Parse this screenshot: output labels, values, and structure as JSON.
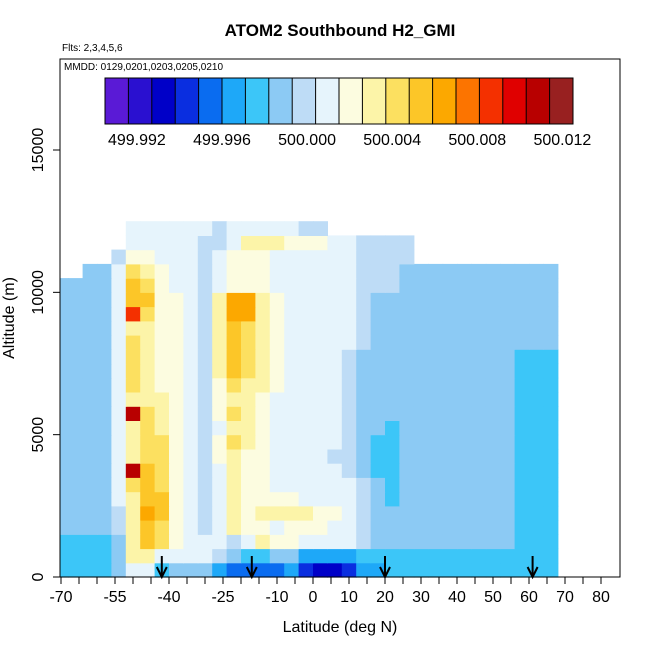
{
  "chart_data": {
    "type": "heatmap",
    "title": "ATOM2 Southbound H2_GMI",
    "flights_label": "Flts: 2,3,4,5,6",
    "dates_label": "MMDD: 0129,0201,0203,0205,0210",
    "xlabel": "Latitude (deg N)",
    "ylabel": "Altitude (m)",
    "xlim": [
      -70,
      80
    ],
    "ylim": [
      0,
      17500
    ],
    "x_ticks": [
      -70,
      -55,
      -40,
      -25,
      -10,
      0,
      10,
      20,
      30,
      40,
      50,
      60,
      70,
      80
    ],
    "x_tick_labels": [
      "-70",
      "-55",
      "-40",
      "-25",
      "-10",
      "0",
      "10",
      "20",
      "30",
      "40",
      "50",
      "60",
      "70",
      "80"
    ],
    "x_minor_ticks": [
      -65,
      -60,
      -50,
      -45,
      -35,
      -30,
      -20,
      -15,
      -5,
      5,
      15,
      25,
      35,
      45,
      55,
      65,
      75
    ],
    "y_ticks": [
      0,
      5000,
      10000,
      15000
    ],
    "y_tick_labels": [
      "0",
      "5000",
      "10000",
      "15000"
    ],
    "colorbar": {
      "ticks": [
        499.992,
        499.996,
        500.0,
        500.004,
        500.008,
        500.012
      ],
      "tick_labels": [
        "499.992",
        "499.996",
        "500.000",
        "500.004",
        "500.008",
        "500.012"
      ],
      "min": 499.9905,
      "max": 500.0125,
      "colors": [
        "#5a1ad6",
        "#2a10d0",
        "#0000c8",
        "#0a2ee0",
        "#0a6cf0",
        "#1ea8f8",
        "#3cc6f8",
        "#8ccaf4",
        "#bedcf6",
        "#e6f4fc",
        "#fcfce0",
        "#fcf4a8",
        "#fce060",
        "#fcc628",
        "#fca800",
        "#fc7400",
        "#f43000",
        "#e00000",
        "#b80000",
        "#982020"
      ]
    },
    "y_bins": [
      0,
      500,
      1000,
      1500,
      2000,
      2500,
      3000,
      3500,
      4000,
      4500,
      5000,
      5500,
      6000,
      6500,
      7000,
      7500,
      8000,
      8500,
      9000,
      9500,
      10000,
      10500,
      11000,
      11500,
      12000
    ],
    "x_bins": [
      -72,
      -68,
      -64,
      -60,
      -56,
      -52,
      -48,
      -44,
      -40,
      -36,
      -32,
      -28,
      -24,
      -20,
      -16,
      -12,
      -8,
      -4,
      0,
      4,
      8,
      12,
      16,
      20,
      24,
      28,
      32,
      36,
      40,
      44,
      48,
      52,
      56,
      60,
      64,
      68
    ],
    "z": [
      [
        499.998,
        499.998,
        499.998,
        499.998,
        499.999,
        500.001,
        500.001,
        499.998,
        499.999,
        499.999,
        499.999,
        499.997,
        499.996,
        499.995,
        499.996,
        499.996,
        499.997,
        499.994,
        499.993,
        499.993,
        499.994,
        499.997,
        499.997,
        499.998,
        499.998,
        499.998,
        499.998,
        499.998,
        499.998,
        499.998,
        499.998,
        499.998,
        499.998,
        499.998,
        499.998
      ],
      [
        499.998,
        499.998,
        499.998,
        499.998,
        499.999,
        500.003,
        500.003,
        500.001,
        500.001,
        500.001,
        500.001,
        500.0,
        499.999,
        499.998,
        499.998,
        499.999,
        499.999,
        499.997,
        499.997,
        499.997,
        499.997,
        499.998,
        499.998,
        499.998,
        499.998,
        499.998,
        499.998,
        499.998,
        499.998,
        499.998,
        499.998,
        499.998,
        499.998,
        499.998,
        499.998
      ],
      [
        499.998,
        499.998,
        499.998,
        499.998,
        499.999,
        500.003,
        500.005,
        500.004,
        500.002,
        500.001,
        500.001,
        500.001,
        500.0,
        500.001,
        500.003,
        500.002,
        500.002,
        500.001,
        500.001,
        500.001,
        500.001,
        500.0,
        499.999,
        499.999,
        499.999,
        499.999,
        499.999,
        499.999,
        499.999,
        499.999,
        499.999,
        499.999,
        499.998,
        499.998,
        499.998
      ],
      [
        499.999,
        499.999,
        499.999,
        499.999,
        500.0,
        500.003,
        500.005,
        500.004,
        500.002,
        500.001,
        500.0,
        500.001,
        500.003,
        500.002,
        500.002,
        500.001,
        500.002,
        500.002,
        500.002,
        500.001,
        500.001,
        500.0,
        499.999,
        499.999,
        499.999,
        499.999,
        499.999,
        499.999,
        499.999,
        499.999,
        499.999,
        499.999,
        499.998,
        499.998,
        499.998
      ],
      [
        499.999,
        499.999,
        499.999,
        499.999,
        500.0,
        500.003,
        500.006,
        500.005,
        500.002,
        500.001,
        500.0,
        500.001,
        500.003,
        500.002,
        500.003,
        500.003,
        500.003,
        500.003,
        500.002,
        500.002,
        500.001,
        500.0,
        499.999,
        499.999,
        499.999,
        499.999,
        499.999,
        499.999,
        499.999,
        499.999,
        499.999,
        499.999,
        499.998,
        499.998,
        499.998
      ],
      [
        499.999,
        499.999,
        499.999,
        499.999,
        500.001,
        500.003,
        500.005,
        500.005,
        500.002,
        500.001,
        500.0,
        500.001,
        500.003,
        500.002,
        500.002,
        500.002,
        500.002,
        500.001,
        500.001,
        500.001,
        500.001,
        500.0,
        499.999,
        499.998,
        499.999,
        499.999,
        499.999,
        499.999,
        499.999,
        499.999,
        499.999,
        499.999,
        499.998,
        499.998,
        499.998
      ],
      [
        499.999,
        499.999,
        499.999,
        499.999,
        500.001,
        500.004,
        500.005,
        500.004,
        500.002,
        500.001,
        500.0,
        500.001,
        500.003,
        500.002,
        500.002,
        500.001,
        500.001,
        500.001,
        500.001,
        500.001,
        500.001,
        500.0,
        499.999,
        499.998,
        499.999,
        499.999,
        499.999,
        499.999,
        499.999,
        499.999,
        499.999,
        499.999,
        499.998,
        499.998,
        499.998
      ],
      [
        499.999,
        499.999,
        499.999,
        499.999,
        500.001,
        500.011,
        500.005,
        500.004,
        500.002,
        500.001,
        500.0,
        500.001,
        500.003,
        500.002,
        500.002,
        500.001,
        500.001,
        500.001,
        500.001,
        500.001,
        500.0,
        499.999,
        499.998,
        499.998,
        499.999,
        499.999,
        499.999,
        499.999,
        499.999,
        499.999,
        499.999,
        499.999,
        499.998,
        499.998,
        499.998
      ],
      [
        499.999,
        499.999,
        499.999,
        499.999,
        500.001,
        500.003,
        500.004,
        500.004,
        500.002,
        500.001,
        500.0,
        500.002,
        500.003,
        500.002,
        500.002,
        500.001,
        500.001,
        500.001,
        500.001,
        500.0,
        500.0,
        499.999,
        499.998,
        499.998,
        499.999,
        499.999,
        499.999,
        499.999,
        499.999,
        499.999,
        499.999,
        499.999,
        499.998,
        499.998,
        499.998
      ],
      [
        499.999,
        499.999,
        499.999,
        499.999,
        500.001,
        500.003,
        500.004,
        500.004,
        500.002,
        500.001,
        500.0,
        500.002,
        500.004,
        500.003,
        500.002,
        500.001,
        500.001,
        500.001,
        500.001,
        500.001,
        500.0,
        499.999,
        499.998,
        499.998,
        499.999,
        499.999,
        499.999,
        499.999,
        499.999,
        499.999,
        499.999,
        499.999,
        499.998,
        499.998,
        499.998
      ],
      [
        499.999,
        499.999,
        499.999,
        499.999,
        500.001,
        500.003,
        500.004,
        500.003,
        500.002,
        500.001,
        500.0,
        500.001,
        500.003,
        500.003,
        500.002,
        500.001,
        500.001,
        500.001,
        500.001,
        500.001,
        500.0,
        499.999,
        499.999,
        499.998,
        499.999,
        499.999,
        499.999,
        499.999,
        499.999,
        499.999,
        499.999,
        499.999,
        499.998,
        499.998,
        499.998
      ],
      [
        499.999,
        499.999,
        499.999,
        499.999,
        500.001,
        500.011,
        500.004,
        500.003,
        500.002,
        500.001,
        500.0,
        500.002,
        500.004,
        500.003,
        500.002,
        500.001,
        500.001,
        500.001,
        500.001,
        500.001,
        500.0,
        499.999,
        499.999,
        499.999,
        499.999,
        499.999,
        499.999,
        499.999,
        499.999,
        499.999,
        499.999,
        499.999,
        499.998,
        499.998,
        499.998
      ],
      [
        499.999,
        499.999,
        499.999,
        499.999,
        500.001,
        500.003,
        500.003,
        500.003,
        500.002,
        500.001,
        500.0,
        500.002,
        500.003,
        500.003,
        500.002,
        500.001,
        500.001,
        500.001,
        500.001,
        500.001,
        500.0,
        499.999,
        499.999,
        499.999,
        499.999,
        499.999,
        499.999,
        499.999,
        499.999,
        499.999,
        499.999,
        499.999,
        499.998,
        499.998,
        499.998
      ],
      [
        499.999,
        499.999,
        499.999,
        499.999,
        500.001,
        500.004,
        500.003,
        500.002,
        500.002,
        500.001,
        500.0,
        500.002,
        500.004,
        500.003,
        500.003,
        500.002,
        500.001,
        500.001,
        500.001,
        500.001,
        500.0,
        499.999,
        499.999,
        499.999,
        499.999,
        499.999,
        499.999,
        499.999,
        499.999,
        499.999,
        499.999,
        499.999,
        499.998,
        499.998,
        499.998
      ],
      [
        499.999,
        499.999,
        499.999,
        499.999,
        500.001,
        500.004,
        500.003,
        500.002,
        500.002,
        500.001,
        500.0,
        500.003,
        500.005,
        500.004,
        500.003,
        500.002,
        500.001,
        500.001,
        500.001,
        500.001,
        500.0,
        499.999,
        499.999,
        499.999,
        499.999,
        499.999,
        499.999,
        499.999,
        499.999,
        499.999,
        499.999,
        499.999,
        499.998,
        499.998,
        499.998
      ],
      [
        499.999,
        499.999,
        499.999,
        499.999,
        500.001,
        500.004,
        500.003,
        500.002,
        500.002,
        500.001,
        500.0,
        500.003,
        500.005,
        500.004,
        500.003,
        500.002,
        500.001,
        500.001,
        500.001,
        500.001,
        500.0,
        499.999,
        499.999,
        499.999,
        499.999,
        499.999,
        499.999,
        499.999,
        499.999,
        499.999,
        499.999,
        499.999,
        499.998,
        499.998,
        499.998
      ],
      [
        499.999,
        499.999,
        499.999,
        499.999,
        500.001,
        500.004,
        500.003,
        500.002,
        500.002,
        500.001,
        500.0,
        500.003,
        500.005,
        500.004,
        500.003,
        500.002,
        500.001,
        500.001,
        500.001,
        500.001,
        500.001,
        500.0,
        499.999,
        499.999,
        499.999,
        499.999,
        499.999,
        499.999,
        499.999,
        499.999,
        499.999,
        499.999,
        499.999,
        499.999,
        499.999
      ],
      [
        499.999,
        499.999,
        499.999,
        499.999,
        500.001,
        500.003,
        500.003,
        500.002,
        500.002,
        500.001,
        500.0,
        500.003,
        500.005,
        500.004,
        500.003,
        500.002,
        500.001,
        500.001,
        500.001,
        500.001,
        500.001,
        500.0,
        499.999,
        499.999,
        499.999,
        499.999,
        499.999,
        499.999,
        499.999,
        499.999,
        499.999,
        499.999,
        499.999,
        499.999,
        499.999
      ],
      [
        499.999,
        499.999,
        499.999,
        499.999,
        500.001,
        500.009,
        500.004,
        500.002,
        500.002,
        500.001,
        500.0,
        500.003,
        500.006,
        500.006,
        500.003,
        500.002,
        500.001,
        500.001,
        500.001,
        500.001,
        500.001,
        500.0,
        499.999,
        499.999,
        499.999,
        499.999,
        499.999,
        499.999,
        499.999,
        499.999,
        499.999,
        499.999,
        499.999,
        499.999,
        499.999
      ],
      [
        499.999,
        499.999,
        499.999,
        499.999,
        500.001,
        500.005,
        500.005,
        500.002,
        500.002,
        500.001,
        500.0,
        500.003,
        500.006,
        500.006,
        500.003,
        500.002,
        500.001,
        500.001,
        500.001,
        500.001,
        500.001,
        500.0,
        499.999,
        499.999,
        499.999,
        499.999,
        499.999,
        499.999,
        499.999,
        499.999,
        499.999,
        499.999,
        499.999,
        499.999,
        499.999
      ],
      [
        499.999,
        499.999,
        499.999,
        499.999,
        500.001,
        500.005,
        500.004,
        500.002,
        500.001,
        500.001,
        500.0,
        500.001,
        500.002,
        500.002,
        500.002,
        500.001,
        500.001,
        500.001,
        500.001,
        500.001,
        500.001,
        500.0,
        500.0,
        500.0,
        499.999,
        499.999,
        499.999,
        499.999,
        499.999,
        499.999,
        499.999,
        499.999,
        499.999,
        499.999,
        499.999
      ],
      [
        null,
        null,
        499.999,
        499.999,
        500.001,
        500.004,
        500.003,
        500.002,
        500.001,
        500.001,
        500.0,
        500.001,
        500.002,
        500.002,
        500.002,
        500.001,
        500.001,
        500.001,
        500.001,
        500.001,
        500.001,
        500.0,
        500.0,
        500.0,
        499.999,
        499.999,
        499.999,
        499.999,
        499.999,
        499.999,
        499.999,
        499.999,
        499.999,
        499.999,
        499.999
      ],
      [
        null,
        null,
        null,
        null,
        500.0,
        500.002,
        500.002,
        500.001,
        500.001,
        500.001,
        500.0,
        500.001,
        500.002,
        500.002,
        500.002,
        500.001,
        500.001,
        500.001,
        500.001,
        500.001,
        500.001,
        500.0,
        500.0,
        500.0,
        500.0,
        null,
        null,
        null,
        null,
        null,
        null,
        null,
        null,
        null,
        null
      ],
      [
        null,
        null,
        null,
        null,
        null,
        500.001,
        500.001,
        500.001,
        500.001,
        500.001,
        500.0,
        500.0,
        500.001,
        500.003,
        500.003,
        500.003,
        500.002,
        500.002,
        500.002,
        500.001,
        500.001,
        500.0,
        500.0,
        500.0,
        500.0,
        null,
        null,
        null,
        null,
        null,
        null,
        null,
        null,
        null,
        null
      ],
      [
        null,
        null,
        null,
        null,
        null,
        500.001,
        500.001,
        500.001,
        500.001,
        500.001,
        500.001,
        500.0,
        500.001,
        500.001,
        500.001,
        500.001,
        500.001,
        500.0,
        500.0,
        null,
        null,
        null,
        null,
        null,
        null,
        null,
        null,
        null,
        null,
        null,
        null,
        null,
        null,
        null,
        null
      ]
    ],
    "arrows_at_latitude": [
      -42,
      -17,
      20,
      61
    ],
    "grid": false
  }
}
